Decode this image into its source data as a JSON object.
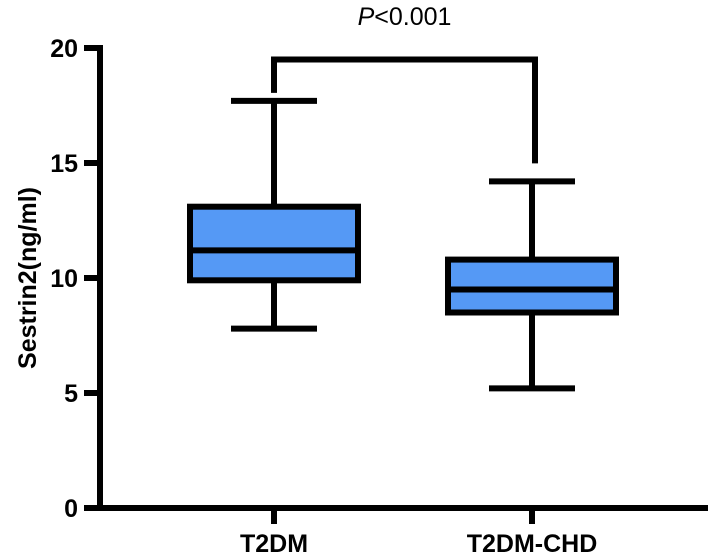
{
  "chart_data": {
    "type": "box",
    "title": "",
    "xlabel": "",
    "ylabel": "Sestrin2(ng/ml)",
    "ylim": [
      0,
      20
    ],
    "yticks": [
      0,
      5,
      10,
      15,
      20
    ],
    "ytick_labels": [
      "0",
      "5",
      "10",
      "15",
      "20"
    ],
    "grid": false,
    "legend": null,
    "categories": [
      "T2DM",
      "T2DM-CHD"
    ],
    "series": [
      {
        "name": "T2DM",
        "min": 7.8,
        "q1": 9.9,
        "median": 11.2,
        "q3": 13.1,
        "max": 17.7
      },
      {
        "name": "T2DM-CHD",
        "min": 5.2,
        "q1": 8.5,
        "median": 9.5,
        "q3": 10.8,
        "max": 14.2
      }
    ],
    "box_color": "#5599F5",
    "annotations": [
      {
        "type": "significance_bracket",
        "between": [
          "T2DM",
          "T2DM-CHD"
        ],
        "y": 19.5,
        "text_prefix": "P",
        "text_suffix": "<0.001"
      }
    ]
  }
}
